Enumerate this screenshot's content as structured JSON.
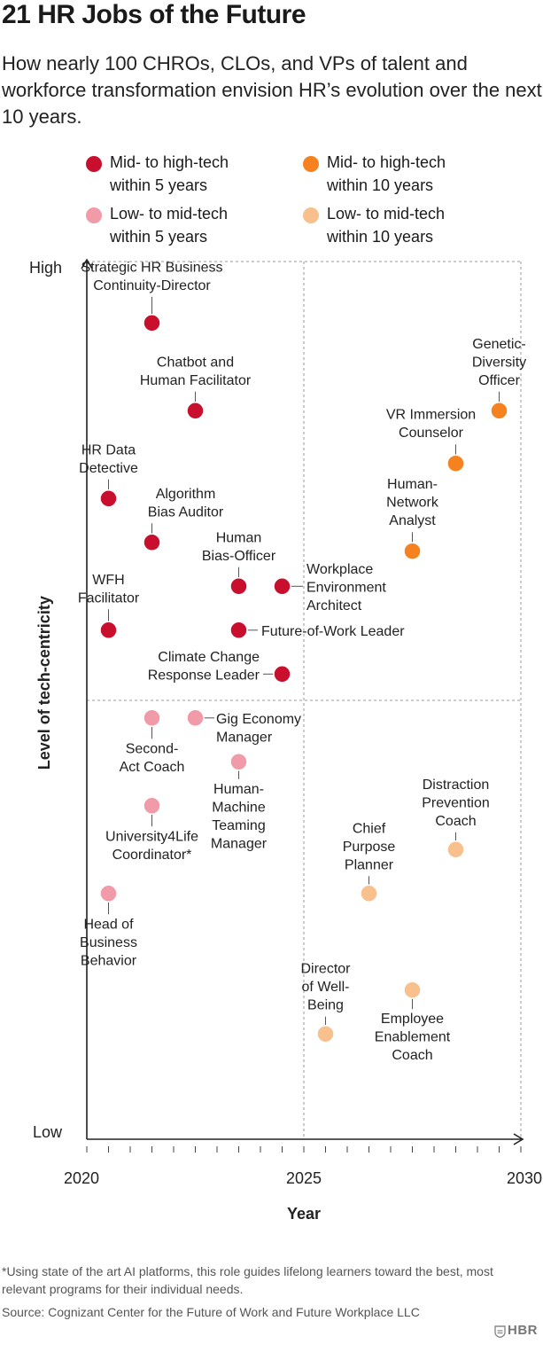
{
  "header": {
    "title": "21 HR Jobs of the Future",
    "subtitle": "How nearly 100 CHROs, CLOs, and VPs of talent and workforce transformation envision HR’s evolution over the next 10 years."
  },
  "legend": [
    {
      "label": "Mid- to high-tech\nwithin 5 years",
      "color": "#c8102e"
    },
    {
      "label": "Mid- to high-tech\nwithin 10 years",
      "color": "#f5821f"
    },
    {
      "label": "Low- to mid-tech\nwithin 5 years",
      "color": "#f19aa8"
    },
    {
      "label": "Low- to mid-tech\nwithin 10 years",
      "color": "#f8c08c"
    }
  ],
  "chart_data": {
    "type": "scatter",
    "xlabel": "Year",
    "ylabel": "Level of tech-centricity",
    "xlim": [
      2020,
      2030
    ],
    "x_ticks": [
      2020,
      2025,
      2030
    ],
    "y_tick_labels": [
      "Low",
      "High"
    ],
    "ylim": [
      0,
      100
    ],
    "grid": "dashed quadrant lines at x=2025 and y=50",
    "series": [
      {
        "name": "Mid- to high-tech within 5 years",
        "color": "#c8102e",
        "points": [
          {
            "label": "Strategic HR Business\nContinuity-Director",
            "x": 2021.5,
            "y": 93
          },
          {
            "label": "Chatbot and\nHuman Facilitator",
            "x": 2022.5,
            "y": 83
          },
          {
            "label": "HR Data\nDetective",
            "x": 2020.5,
            "y": 73
          },
          {
            "label": "Algorithm\nBias Auditor",
            "x": 2021.5,
            "y": 68
          },
          {
            "label": "Human\nBias-Officer",
            "x": 2023.5,
            "y": 63
          },
          {
            "label": "Workplace\nEnvironment\nArchitect",
            "x": 2024.5,
            "y": 63
          },
          {
            "label": "WFH\nFacilitator",
            "x": 2020.5,
            "y": 58
          },
          {
            "label": "Future-of-Work Leader",
            "x": 2023.5,
            "y": 58
          },
          {
            "label": "Climate Change\nResponse Leader",
            "x": 2024.5,
            "y": 53
          }
        ]
      },
      {
        "name": "Mid- to high-tech within 10 years",
        "color": "#f5821f",
        "points": [
          {
            "label": "Genetic-\nDiversity\nOfficer",
            "x": 2029.5,
            "y": 83
          },
          {
            "label": "VR Immersion\nCounselor",
            "x": 2028.5,
            "y": 77
          },
          {
            "label": "Human-\nNetwork\nAnalyst",
            "x": 2027.5,
            "y": 67
          }
        ]
      },
      {
        "name": "Low- to mid-tech within 5 years",
        "color": "#f19aa8",
        "points": [
          {
            "label": "Second-\nAct Coach",
            "x": 2021.5,
            "y": 48
          },
          {
            "label": "Gig Economy\nManager",
            "x": 2022.5,
            "y": 48
          },
          {
            "label": "Human-\nMachine\nTeaming\nManager",
            "x": 2023.5,
            "y": 43
          },
          {
            "label": "University4Life\nCoordinator*",
            "x": 2021.5,
            "y": 38
          },
          {
            "label": "Head of\nBusiness\nBehavior",
            "x": 2020.5,
            "y": 28
          }
        ]
      },
      {
        "name": "Low- to mid-tech within 10 years",
        "color": "#f8c08c",
        "points": [
          {
            "label": "Distraction\nPrevention\nCoach",
            "x": 2028.5,
            "y": 33
          },
          {
            "label": "Chief\nPurpose\nPlanner",
            "x": 2026.5,
            "y": 28
          },
          {
            "label": "Employee\nEnablement\nCoach",
            "x": 2027.5,
            "y": 17
          },
          {
            "label": "Director\nof Well-\nBeing",
            "x": 2025.5,
            "y": 12
          }
        ]
      }
    ]
  },
  "footer": {
    "footnote": "*Using state of the art AI platforms, this role guides lifelong learners toward the best, most relevant programs for their individual needs.",
    "source": "Source: Cognizant Center for the Future of Work and Future Workplace LLC",
    "brand": "HBR"
  }
}
